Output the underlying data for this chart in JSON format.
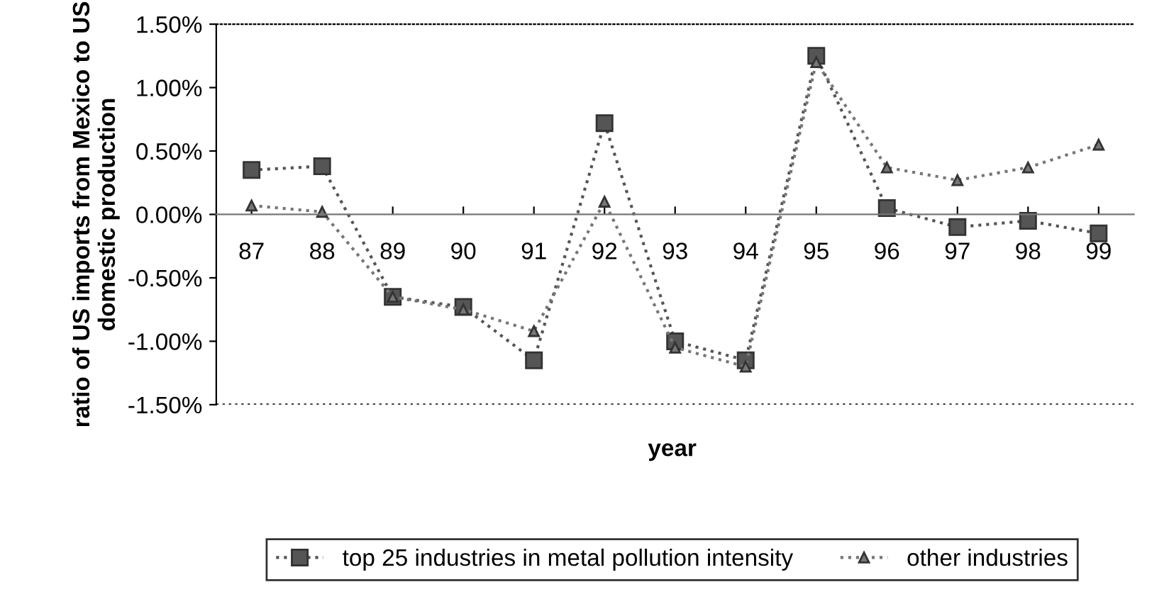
{
  "chart_data": {
    "type": "line",
    "xlabel": "year",
    "ylabel": "ratio of US imports from Mexico to US domestic production",
    "categories": [
      "87",
      "88",
      "89",
      "90",
      "91",
      "92",
      "93",
      "94",
      "95",
      "96",
      "97",
      "98",
      "99"
    ],
    "series": [
      {
        "name": "top 25 industries in metal pollution intensity",
        "color": "#555555",
        "marker": "square",
        "values": [
          0.35,
          0.38,
          -0.65,
          -0.73,
          -1.15,
          0.72,
          -1.0,
          -1.15,
          1.25,
          0.05,
          -0.1,
          -0.05,
          -0.15
        ]
      },
      {
        "name": "other industries",
        "color": "#777777",
        "marker": "triangle",
        "values": [
          0.07,
          0.02,
          -0.65,
          -0.75,
          -0.92,
          0.1,
          -1.05,
          -1.2,
          1.2,
          0.37,
          0.27,
          0.37,
          0.55
        ]
      }
    ],
    "ylim": [
      -1.5,
      1.5
    ],
    "yticks": [
      {
        "value": -1.5,
        "label": "-1.50%"
      },
      {
        "value": -1.0,
        "label": "-1.00%"
      },
      {
        "value": -0.5,
        "label": "-0.50%"
      },
      {
        "value": 0,
        "label": "0.00%"
      },
      {
        "value": 0.5,
        "label": "0.50%"
      },
      {
        "value": 1.0,
        "label": "1.00%"
      },
      {
        "value": 1.5,
        "label": "1.50%"
      }
    ],
    "line_style": "dotted",
    "grid": false,
    "legend": "bottom"
  }
}
